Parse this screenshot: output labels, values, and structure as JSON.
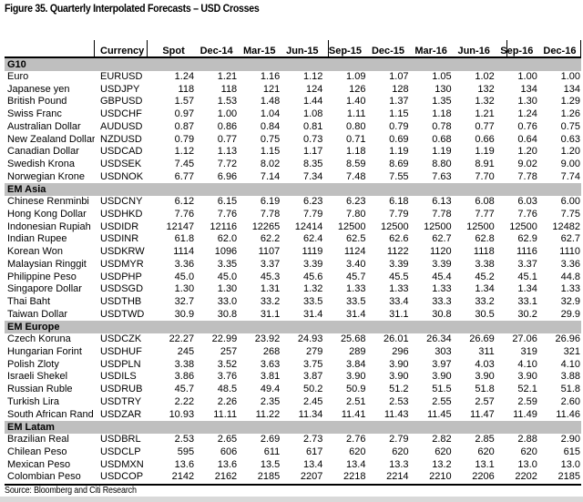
{
  "figure": {
    "title": "Figure 35. Quarterly Interpolated Forecasts – USD Crosses",
    "source": "Source: Bloomberg and Citi Research"
  },
  "colors": {
    "section_bg": "#bfbfbf",
    "rule": "#000000",
    "bottom_band": "#d9d9d9"
  },
  "table": {
    "columns": [
      "Currency",
      "Spot",
      "Dec-14",
      "Mar-15",
      "Jun-15",
      "Sep-15",
      "Dec-15",
      "Mar-16",
      "Jun-16",
      "Sep-16",
      "Dec-16"
    ],
    "sections": [
      {
        "label": "G10",
        "rows": [
          {
            "name": "Euro",
            "code": "EURUSD",
            "values": [
              "1.24",
              "1.21",
              "1.16",
              "1.12",
              "1.09",
              "1.07",
              "1.05",
              "1.02",
              "1.00",
              "1.00"
            ]
          },
          {
            "name": "Japanese yen",
            "code": "USDJPY",
            "values": [
              "118",
              "118",
              "121",
              "124",
              "126",
              "128",
              "130",
              "132",
              "134",
              "134"
            ]
          },
          {
            "name": "British Pound",
            "code": "GBPUSD",
            "values": [
              "1.57",
              "1.53",
              "1.48",
              "1.44",
              "1.40",
              "1.37",
              "1.35",
              "1.32",
              "1.30",
              "1.29"
            ]
          },
          {
            "name": "Swiss Franc",
            "code": "USDCHF",
            "values": [
              "0.97",
              "1.00",
              "1.04",
              "1.08",
              "1.11",
              "1.15",
              "1.18",
              "1.21",
              "1.24",
              "1.26"
            ]
          },
          {
            "name": "Australian Dollar",
            "code": "AUDUSD",
            "values": [
              "0.87",
              "0.86",
              "0.84",
              "0.81",
              "0.80",
              "0.79",
              "0.78",
              "0.77",
              "0.76",
              "0.75"
            ]
          },
          {
            "name": "New Zealand Dollar",
            "code": "NZDUSD",
            "values": [
              "0.79",
              "0.77",
              "0.75",
              "0.73",
              "0.71",
              "0.69",
              "0.68",
              "0.66",
              "0.64",
              "0.63"
            ]
          },
          {
            "name": "Canadian Dollar",
            "code": "USDCAD",
            "values": [
              "1.12",
              "1.13",
              "1.15",
              "1.17",
              "1.18",
              "1.19",
              "1.19",
              "1.19",
              "1.20",
              "1.20"
            ]
          },
          {
            "name": "Swedish Krona",
            "code": "USDSEK",
            "values": [
              "7.45",
              "7.72",
              "8.02",
              "8.35",
              "8.59",
              "8.69",
              "8.80",
              "8.91",
              "9.02",
              "9.00"
            ]
          },
          {
            "name": "Norwegian Krone",
            "code": "USDNOK",
            "values": [
              "6.77",
              "6.96",
              "7.14",
              "7.34",
              "7.48",
              "7.55",
              "7.63",
              "7.70",
              "7.78",
              "7.74"
            ]
          }
        ]
      },
      {
        "label": "EM Asia",
        "rows": [
          {
            "name": "Chinese Renminbi",
            "code": "USDCNY",
            "values": [
              "6.12",
              "6.15",
              "6.19",
              "6.23",
              "6.23",
              "6.18",
              "6.13",
              "6.08",
              "6.03",
              "6.00"
            ]
          },
          {
            "name": "Hong Kong Dollar",
            "code": "USDHKD",
            "values": [
              "7.76",
              "7.76",
              "7.78",
              "7.79",
              "7.80",
              "7.79",
              "7.78",
              "7.77",
              "7.76",
              "7.75"
            ]
          },
          {
            "name": "Indonesian Rupiah",
            "code": "USDIDR",
            "values": [
              "12147",
              "12116",
              "12265",
              "12414",
              "12500",
              "12500",
              "12500",
              "12500",
              "12500",
              "12482"
            ]
          },
          {
            "name": "Indian Rupee",
            "code": "USDINR",
            "values": [
              "61.8",
              "62.0",
              "62.2",
              "62.4",
              "62.5",
              "62.6",
              "62.7",
              "62.8",
              "62.9",
              "62.7"
            ]
          },
          {
            "name": "Korean Won",
            "code": "USDKRW",
            "values": [
              "1114",
              "1096",
              "1107",
              "1119",
              "1124",
              "1122",
              "1120",
              "1118",
              "1116",
              "1110"
            ]
          },
          {
            "name": "Malaysian Ringgit",
            "code": "USDMYR",
            "values": [
              "3.36",
              "3.35",
              "3.37",
              "3.39",
              "3.40",
              "3.39",
              "3.39",
              "3.38",
              "3.37",
              "3.36"
            ]
          },
          {
            "name": "Philippine Peso",
            "code": "USDPHP",
            "values": [
              "45.0",
              "45.0",
              "45.3",
              "45.6",
              "45.7",
              "45.5",
              "45.4",
              "45.2",
              "45.1",
              "44.8"
            ]
          },
          {
            "name": "Singapore Dollar",
            "code": "USDSGD",
            "values": [
              "1.30",
              "1.30",
              "1.31",
              "1.32",
              "1.33",
              "1.33",
              "1.33",
              "1.34",
              "1.34",
              "1.33"
            ]
          },
          {
            "name": "Thai Baht",
            "code": "USDTHB",
            "values": [
              "32.7",
              "33.0",
              "33.2",
              "33.5",
              "33.5",
              "33.4",
              "33.3",
              "33.2",
              "33.1",
              "32.9"
            ]
          },
          {
            "name": "Taiwan Dollar",
            "code": "USDTWD",
            "values": [
              "30.9",
              "30.8",
              "31.1",
              "31.4",
              "31.4",
              "31.1",
              "30.8",
              "30.5",
              "30.2",
              "29.9"
            ]
          }
        ]
      },
      {
        "label": "EM Europe",
        "rows": [
          {
            "name": "Czech Koruna",
            "code": "USDCZK",
            "values": [
              "22.27",
              "22.99",
              "23.92",
              "24.93",
              "25.68",
              "26.01",
              "26.34",
              "26.69",
              "27.06",
              "26.96"
            ]
          },
          {
            "name": "Hungarian Forint",
            "code": "USDHUF",
            "values": [
              "245",
              "257",
              "268",
              "279",
              "289",
              "296",
              "303",
              "311",
              "319",
              "321"
            ]
          },
          {
            "name": "Polish Zloty",
            "code": "USDPLN",
            "values": [
              "3.38",
              "3.52",
              "3.63",
              "3.75",
              "3.84",
              "3.90",
              "3.97",
              "4.03",
              "4.10",
              "4.10"
            ]
          },
          {
            "name": "Israeli Shekel",
            "code": "USDILS",
            "values": [
              "3.86",
              "3.76",
              "3.81",
              "3.87",
              "3.90",
              "3.90",
              "3.90",
              "3.90",
              "3.90",
              "3.88"
            ]
          },
          {
            "name": "Russian Ruble",
            "code": "USDRUB",
            "values": [
              "45.7",
              "48.5",
              "49.4",
              "50.2",
              "50.9",
              "51.2",
              "51.5",
              "51.8",
              "52.1",
              "51.8"
            ]
          },
          {
            "name": "Turkish Lira",
            "code": "USDTRY",
            "values": [
              "2.22",
              "2.26",
              "2.35",
              "2.45",
              "2.51",
              "2.53",
              "2.55",
              "2.57",
              "2.59",
              "2.60"
            ]
          },
          {
            "name": "South African Rand",
            "code": "USDZAR",
            "values": [
              "10.93",
              "11.11",
              "11.22",
              "11.34",
              "11.41",
              "11.43",
              "11.45",
              "11.47",
              "11.49",
              "11.46"
            ]
          }
        ]
      },
      {
        "label": "EM Latam",
        "rows": [
          {
            "name": "Brazilian Real",
            "code": "USDBRL",
            "values": [
              "2.53",
              "2.65",
              "2.69",
              "2.73",
              "2.76",
              "2.79",
              "2.82",
              "2.85",
              "2.88",
              "2.90"
            ]
          },
          {
            "name": "Chilean Peso",
            "code": "USDCLP",
            "values": [
              "595",
              "606",
              "611",
              "617",
              "620",
              "620",
              "620",
              "620",
              "620",
              "615"
            ]
          },
          {
            "name": "Mexican Peso",
            "code": "USDMXN",
            "values": [
              "13.6",
              "13.6",
              "13.5",
              "13.4",
              "13.4",
              "13.3",
              "13.2",
              "13.1",
              "13.0",
              "13.0"
            ]
          },
          {
            "name": "Colombian Peso",
            "code": "USDCOP",
            "values": [
              "2142",
              "2162",
              "2185",
              "2207",
              "2218",
              "2214",
              "2210",
              "2206",
              "2202",
              "2185"
            ]
          }
        ]
      }
    ]
  }
}
